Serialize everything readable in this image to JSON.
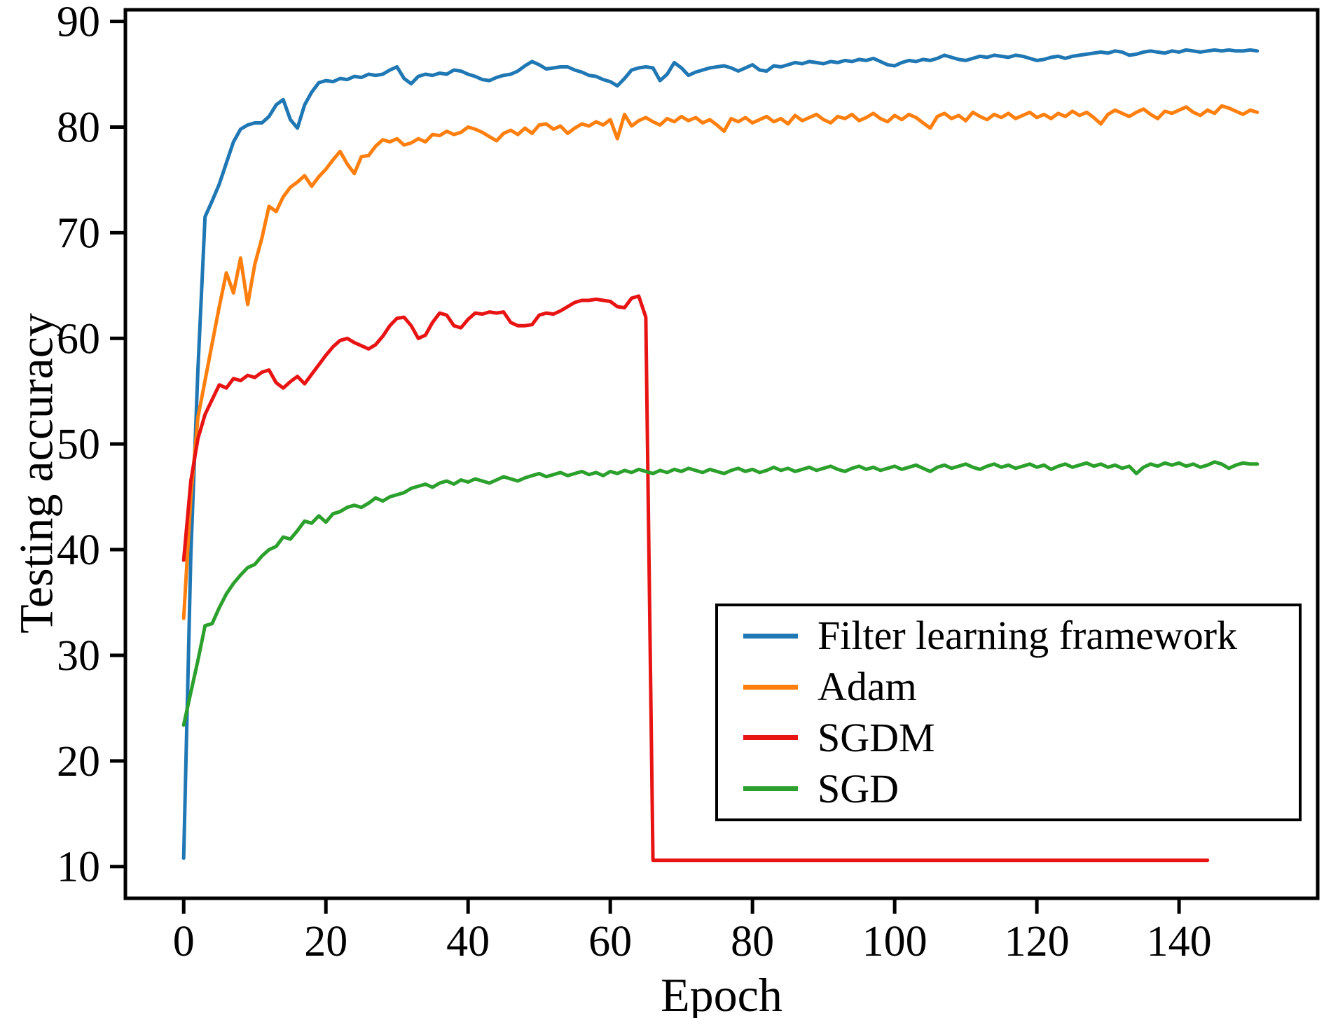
{
  "chart_data": {
    "type": "line",
    "title": "",
    "xlabel": "Epoch",
    "ylabel": "Testing accuracy",
    "xlim": [
      -8.2,
      159.5
    ],
    "ylim": [
      7.0,
      91.1
    ],
    "x_ticks": [
      0,
      20,
      40,
      60,
      80,
      100,
      120,
      140
    ],
    "y_ticks": [
      10,
      20,
      30,
      40,
      50,
      60,
      70,
      80,
      90
    ],
    "grid": false,
    "legend_position": "lower right",
    "frame_color": "#000000",
    "background_color": "#ffffff",
    "series": [
      {
        "name": "Filter learning framework",
        "color": "#1f77b4",
        "x_start": 0,
        "x_step": 1,
        "values": [
          10.8,
          39.5,
          57.0,
          71.5,
          73.0,
          74.6,
          76.6,
          78.6,
          79.8,
          80.2,
          80.4,
          80.4,
          81.0,
          82.1,
          82.6,
          80.7,
          79.9,
          82.1,
          83.3,
          84.2,
          84.4,
          84.3,
          84.6,
          84.5,
          84.8,
          84.7,
          85.0,
          84.9,
          85.0,
          85.4,
          85.7,
          84.6,
          84.1,
          84.8,
          85.0,
          84.9,
          85.1,
          85.0,
          85.4,
          85.3,
          85.0,
          84.8,
          84.5,
          84.4,
          84.7,
          84.9,
          85.0,
          85.3,
          85.8,
          86.2,
          85.9,
          85.5,
          85.6,
          85.7,
          85.7,
          85.4,
          85.2,
          84.9,
          84.8,
          84.5,
          84.3,
          83.9,
          84.6,
          85.4,
          85.6,
          85.7,
          85.6,
          84.4,
          85.0,
          86.1,
          85.6,
          84.9,
          85.2,
          85.4,
          85.6,
          85.7,
          85.8,
          85.6,
          85.3,
          85.6,
          85.9,
          85.4,
          85.3,
          85.8,
          85.7,
          85.9,
          86.1,
          86.0,
          86.2,
          86.1,
          86.0,
          86.2,
          86.1,
          86.3,
          86.2,
          86.4,
          86.3,
          86.5,
          86.2,
          85.9,
          85.8,
          86.1,
          86.3,
          86.2,
          86.4,
          86.3,
          86.5,
          86.8,
          86.6,
          86.4,
          86.3,
          86.5,
          86.7,
          86.6,
          86.8,
          86.7,
          86.6,
          86.8,
          86.7,
          86.5,
          86.3,
          86.4,
          86.6,
          86.7,
          86.5,
          86.7,
          86.8,
          86.9,
          87.0,
          87.1,
          87.0,
          87.2,
          87.1,
          86.8,
          86.9,
          87.1,
          87.2,
          87.1,
          87.0,
          87.2,
          87.1,
          87.3,
          87.2,
          87.1,
          87.2,
          87.3,
          87.2,
          87.3,
          87.2,
          87.2,
          87.3,
          87.2
        ]
      },
      {
        "name": "Adam",
        "color": "#ff7f0e",
        "x_start": 0,
        "x_step": 1,
        "values": [
          33.5,
          45.0,
          52.5,
          56.0,
          59.5,
          63.0,
          66.2,
          64.3,
          67.6,
          63.2,
          67.0,
          69.5,
          72.5,
          72.0,
          73.4,
          74.3,
          74.8,
          75.4,
          74.4,
          75.3,
          76.0,
          76.9,
          77.7,
          76.5,
          75.6,
          77.2,
          77.3,
          78.2,
          78.8,
          78.6,
          78.9,
          78.3,
          78.5,
          78.9,
          78.6,
          79.3,
          79.2,
          79.6,
          79.3,
          79.5,
          80.0,
          79.8,
          79.5,
          79.1,
          78.7,
          79.4,
          79.7,
          79.3,
          79.9,
          79.4,
          80.2,
          80.3,
          79.8,
          80.1,
          79.4,
          79.9,
          80.3,
          80.1,
          80.5,
          80.2,
          80.7,
          78.9,
          81.2,
          80.1,
          80.6,
          80.9,
          80.5,
          80.2,
          80.8,
          80.5,
          81.0,
          80.6,
          80.9,
          80.4,
          80.7,
          80.2,
          79.6,
          80.8,
          80.5,
          80.9,
          80.4,
          80.7,
          81.0,
          80.5,
          80.8,
          80.3,
          81.1,
          80.6,
          80.9,
          81.2,
          80.7,
          80.4,
          81.0,
          80.8,
          81.2,
          80.6,
          80.9,
          81.3,
          80.8,
          80.5,
          81.1,
          80.7,
          81.2,
          80.9,
          80.4,
          79.9,
          81.0,
          81.3,
          80.8,
          81.1,
          80.6,
          81.4,
          81.0,
          80.7,
          81.2,
          80.9,
          81.3,
          80.8,
          81.1,
          81.4,
          80.9,
          81.2,
          80.8,
          81.3,
          81.0,
          81.5,
          81.1,
          81.4,
          80.9,
          80.3,
          81.2,
          81.6,
          81.3,
          81.0,
          81.4,
          81.7,
          81.2,
          80.8,
          81.5,
          81.3,
          81.6,
          81.9,
          81.4,
          81.1,
          81.6,
          81.3,
          82.0,
          81.8,
          81.5,
          81.2,
          81.6,
          81.4
        ]
      },
      {
        "name": "SGDM",
        "color": "#e81414",
        "x_start": 0,
        "x_step": 1,
        "values": [
          39.0,
          46.5,
          50.5,
          52.8,
          54.2,
          55.6,
          55.3,
          56.2,
          56.0,
          56.5,
          56.3,
          56.8,
          57.0,
          55.8,
          55.3,
          55.9,
          56.4,
          55.7,
          56.6,
          57.5,
          58.4,
          59.2,
          59.8,
          60.0,
          59.6,
          59.3,
          59.0,
          59.4,
          60.2,
          61.2,
          61.9,
          62.0,
          61.2,
          60.0,
          60.3,
          61.5,
          62.4,
          62.2,
          61.2,
          61.0,
          61.8,
          62.4,
          62.3,
          62.5,
          62.4,
          62.5,
          61.5,
          61.2,
          61.2,
          61.3,
          62.2,
          62.4,
          62.3,
          62.6,
          63.0,
          63.4,
          63.6,
          63.6,
          63.7,
          63.6,
          63.5,
          63.0,
          62.9,
          63.8,
          64.0,
          62.0,
          10.6,
          10.6,
          10.6,
          10.6,
          10.6,
          10.6,
          10.6,
          10.6,
          10.6,
          10.6,
          10.6,
          10.6,
          10.6,
          10.6,
          10.6,
          10.6,
          10.6,
          10.6,
          10.6,
          10.6,
          10.6,
          10.6,
          10.6,
          10.6,
          10.6,
          10.6,
          10.6,
          10.6,
          10.6,
          10.6,
          10.6,
          10.6,
          10.6,
          10.6,
          10.6,
          10.6,
          10.6,
          10.6,
          10.6,
          10.6,
          10.6,
          10.6,
          10.6,
          10.6,
          10.6,
          10.6,
          10.6,
          10.6,
          10.6,
          10.6,
          10.6,
          10.6,
          10.6,
          10.6,
          10.6,
          10.6,
          10.6,
          10.6,
          10.6,
          10.6,
          10.6,
          10.6,
          10.6,
          10.6,
          10.6,
          10.6,
          10.6,
          10.6,
          10.6,
          10.6,
          10.6,
          10.6,
          10.6,
          10.6,
          10.6,
          10.6,
          10.6,
          10.6,
          10.6
        ]
      },
      {
        "name": "SGD",
        "color": "#2ca02c",
        "x_start": 0,
        "x_step": 1,
        "values": [
          23.4,
          26.5,
          29.5,
          32.8,
          33.0,
          34.5,
          35.8,
          36.8,
          37.6,
          38.3,
          38.6,
          39.4,
          40.0,
          40.3,
          41.2,
          41.0,
          41.8,
          42.7,
          42.5,
          43.2,
          42.6,
          43.4,
          43.6,
          44.0,
          44.2,
          44.0,
          44.4,
          44.9,
          44.6,
          45.0,
          45.2,
          45.4,
          45.8,
          46.0,
          46.2,
          45.9,
          46.3,
          46.5,
          46.2,
          46.6,
          46.4,
          46.7,
          46.5,
          46.3,
          46.6,
          46.9,
          46.7,
          46.5,
          46.8,
          47.0,
          47.2,
          46.9,
          47.1,
          47.3,
          47.0,
          47.2,
          47.4,
          47.1,
          47.3,
          47.0,
          47.4,
          47.2,
          47.5,
          47.3,
          47.6,
          47.4,
          47.2,
          47.5,
          47.3,
          47.6,
          47.4,
          47.7,
          47.5,
          47.3,
          47.6,
          47.4,
          47.2,
          47.5,
          47.7,
          47.4,
          47.6,
          47.3,
          47.5,
          47.8,
          47.5,
          47.7,
          47.4,
          47.6,
          47.8,
          47.5,
          47.7,
          47.9,
          47.6,
          47.4,
          47.7,
          47.9,
          47.6,
          47.8,
          47.5,
          47.7,
          47.9,
          47.6,
          47.8,
          48.0,
          47.7,
          47.4,
          47.8,
          48.0,
          47.7,
          47.9,
          48.1,
          47.8,
          47.6,
          47.9,
          48.1,
          47.8,
          48.0,
          47.7,
          47.9,
          48.1,
          47.8,
          48.0,
          47.6,
          47.9,
          48.1,
          47.8,
          48.0,
          48.2,
          47.9,
          48.1,
          47.8,
          48.0,
          47.7,
          47.9,
          47.2,
          47.8,
          48.1,
          47.9,
          48.2,
          48.0,
          48.2,
          47.9,
          48.1,
          47.8,
          48.0,
          48.3,
          48.1,
          47.7,
          48.0,
          48.2,
          48.1,
          48.1
        ]
      }
    ]
  }
}
